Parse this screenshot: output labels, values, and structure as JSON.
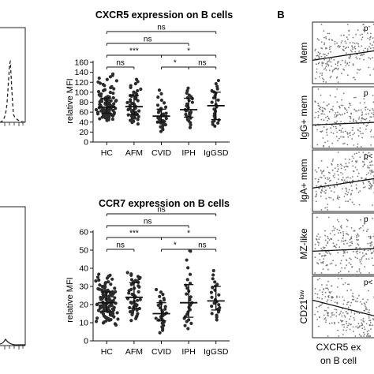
{
  "figure": {
    "panel_b_letter": "B",
    "panel_b_xlabel_line1": "CXCR5 ex",
    "panel_b_xlabel_line2": "on B cell"
  },
  "chart_data": [
    {
      "type": "scatter",
      "title": "CXCR5 expression on B cells",
      "ylabel": "relative MFI",
      "ylim": [
        0,
        160
      ],
      "yticks": [
        0,
        20,
        40,
        60,
        80,
        100,
        120,
        140,
        160
      ],
      "categories": [
        "HC",
        "AFM",
        "CVID",
        "IPH",
        "IgGSD"
      ],
      "groups": [
        {
          "name": "HC",
          "n": 110,
          "median": 70,
          "q1": 58,
          "q3": 88,
          "min": 42,
          "max": 138
        },
        {
          "name": "AFM",
          "n": 48,
          "median": 71,
          "q1": 55,
          "q3": 93,
          "min": 33,
          "max": 128
        },
        {
          "name": "CVID",
          "n": 34,
          "median": 52,
          "q1": 40,
          "q3": 66,
          "min": 17,
          "max": 108
        },
        {
          "name": "IPH",
          "n": 25,
          "median": 65,
          "q1": 50,
          "q3": 88,
          "min": 23,
          "max": 111
        },
        {
          "name": "IgGSD",
          "n": 24,
          "median": 73,
          "q1": 45,
          "q3": 100,
          "min": 28,
          "max": 127
        }
      ],
      "significance": [
        {
          "from": "HC",
          "to": "IgGSD",
          "label": "ns"
        },
        {
          "from": "HC",
          "to": "IPH",
          "label": "ns"
        },
        {
          "from": "HC",
          "to": "CVID",
          "label": "***"
        },
        {
          "from": "CVID",
          "to": "IgGSD",
          "label": "*"
        },
        {
          "from": "HC",
          "to": "AFM",
          "label": "ns"
        },
        {
          "from": "CVID",
          "to": "IPH",
          "label": "*"
        },
        {
          "from": "IPH",
          "to": "IgGSD",
          "label": "ns"
        }
      ]
    },
    {
      "type": "scatter",
      "title": "CCR7 expression on B cells",
      "ylabel": "relative MFI",
      "ylim": [
        0,
        60
      ],
      "yticks": [
        0,
        10,
        20,
        30,
        40,
        50,
        60
      ],
      "categories": [
        "HC",
        "AFM",
        "CVID",
        "IPH",
        "IgGSD"
      ],
      "groups": [
        {
          "name": "HC",
          "n": 110,
          "median": 21,
          "q1": 16,
          "q3": 27,
          "min": 8,
          "max": 37
        },
        {
          "name": "AFM",
          "n": 48,
          "median": 24,
          "q1": 18,
          "q3": 32,
          "min": 10,
          "max": 38
        },
        {
          "name": "CVID",
          "n": 34,
          "median": 15,
          "q1": 11,
          "q3": 21,
          "min": 3,
          "max": 29
        },
        {
          "name": "IPH",
          "n": 25,
          "median": 21,
          "q1": 13,
          "q3": 31,
          "min": 5,
          "max": 52
        },
        {
          "name": "IgGSD",
          "n": 24,
          "median": 22,
          "q1": 17,
          "q3": 30,
          "min": 10,
          "max": 40
        }
      ],
      "significance": [
        {
          "from": "HC",
          "to": "IgGSD",
          "label": "ns"
        },
        {
          "from": "HC",
          "to": "IPH",
          "label": "ns"
        },
        {
          "from": "HC",
          "to": "CVID",
          "label": "***"
        },
        {
          "from": "CVID",
          "to": "IgGSD",
          "label": "*"
        },
        {
          "from": "HC",
          "to": "AFM",
          "label": "ns"
        },
        {
          "from": "CVID",
          "to": "IPH",
          "label": "*"
        },
        {
          "from": "IPH",
          "to": "IgGSD",
          "label": "ns"
        }
      ]
    },
    {
      "type": "scatter",
      "title": "",
      "xlabel": "CXCR5 ex on B cell",
      "panels": [
        {
          "label": "Mem",
          "p_text": "p",
          "trend": "up"
        },
        {
          "label": "IgG+ mem",
          "p_text": "p",
          "trend": "flat"
        },
        {
          "label": "IgA+ mem",
          "p_text": "p<",
          "trend": "up"
        },
        {
          "label": "MZ-like",
          "p_text": "p",
          "trend": "flat"
        },
        {
          "label": "CD21low",
          "label_main": "CD21",
          "label_sup": "low",
          "p_text": "p<",
          "trend": "down"
        }
      ]
    }
  ]
}
